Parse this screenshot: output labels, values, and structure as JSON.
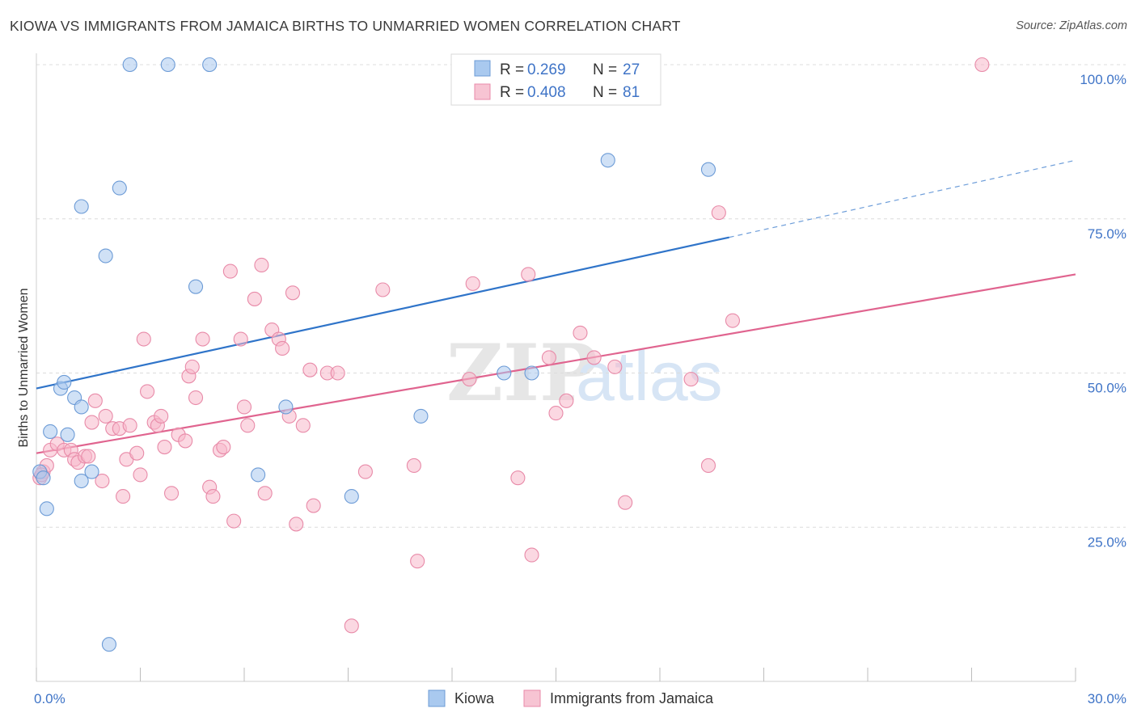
{
  "title": "KIOWA VS IMMIGRANTS FROM JAMAICA BIRTHS TO UNMARRIED WOMEN CORRELATION CHART",
  "source": "Source: ZipAtlas.com",
  "watermark": {
    "zip": "ZIP",
    "atlas": "atlas"
  },
  "chart_data": {
    "type": "scatter",
    "xlabel": "",
    "ylabel": "Births to Unmarried Women",
    "xlim": [
      0,
      30
    ],
    "ylim": [
      0,
      100
    ],
    "x_tick_labels": [
      {
        "value": 0,
        "label": "0.0%"
      },
      {
        "value": 30,
        "label": "30.0%"
      }
    ],
    "y_tick_labels": [
      {
        "value": 25,
        "label": "25.0%"
      },
      {
        "value": 50,
        "label": "50.0%"
      },
      {
        "value": 75,
        "label": "75.0%"
      },
      {
        "value": 100,
        "label": "100.0%"
      }
    ],
    "legend": {
      "r_label": "R =",
      "n_label": "N =",
      "entries": [
        {
          "name": "Kiowa",
          "r": "0.269",
          "n": "27"
        },
        {
          "name": "Immigrants from Jamaica",
          "r": "0.408",
          "n": "81"
        }
      ]
    },
    "series": [
      {
        "name": "Kiowa",
        "color": "#a9c9ef",
        "stroke": "#6c9bd6",
        "line_color": "#2f74c9",
        "trend": {
          "x0": 0,
          "y0": 47.5,
          "x1": 20,
          "y1": 72,
          "dash_to_x": 30,
          "dash_to_y": 84.5
        },
        "points": [
          {
            "x": 0.1,
            "y": 34
          },
          {
            "x": 0.2,
            "y": 33
          },
          {
            "x": 0.3,
            "y": 28
          },
          {
            "x": 0.4,
            "y": 40.5
          },
          {
            "x": 0.7,
            "y": 47.5
          },
          {
            "x": 0.8,
            "y": 48.5
          },
          {
            "x": 0.9,
            "y": 40
          },
          {
            "x": 1.1,
            "y": 46
          },
          {
            "x": 1.3,
            "y": 44.5
          },
          {
            "x": 1.3,
            "y": 32.5
          },
          {
            "x": 1.6,
            "y": 34
          },
          {
            "x": 1.3,
            "y": 77
          },
          {
            "x": 2.0,
            "y": 69
          },
          {
            "x": 2.1,
            "y": 6
          },
          {
            "x": 2.4,
            "y": 80
          },
          {
            "x": 2.7,
            "y": 100
          },
          {
            "x": 3.8,
            "y": 100
          },
          {
            "x": 5.0,
            "y": 100
          },
          {
            "x": 4.6,
            "y": 64
          },
          {
            "x": 6.4,
            "y": 33.5
          },
          {
            "x": 7.2,
            "y": 44.5
          },
          {
            "x": 9.1,
            "y": 30
          },
          {
            "x": 11.1,
            "y": 43
          },
          {
            "x": 13.5,
            "y": 50
          },
          {
            "x": 14.3,
            "y": 50
          },
          {
            "x": 16.5,
            "y": 84.5
          },
          {
            "x": 19.4,
            "y": 83
          }
        ]
      },
      {
        "name": "Immigrants from Jamaica",
        "color": "#f7b8cb",
        "stroke": "#e88aa8",
        "line_color": "#e0648f",
        "trend": {
          "x0": 0,
          "y0": 37,
          "x1": 30,
          "y1": 66
        },
        "points": [
          {
            "x": 0.1,
            "y": 33
          },
          {
            "x": 0.2,
            "y": 34
          },
          {
            "x": 0.3,
            "y": 35
          },
          {
            "x": 0.4,
            "y": 37.5
          },
          {
            "x": 0.6,
            "y": 38.5
          },
          {
            "x": 0.8,
            "y": 37.5
          },
          {
            "x": 1.0,
            "y": 37.5
          },
          {
            "x": 1.1,
            "y": 36
          },
          {
            "x": 1.2,
            "y": 35.5
          },
          {
            "x": 1.4,
            "y": 36.5
          },
          {
            "x": 1.5,
            "y": 36.5
          },
          {
            "x": 1.6,
            "y": 42
          },
          {
            "x": 1.7,
            "y": 45.5
          },
          {
            "x": 1.9,
            "y": 32.5
          },
          {
            "x": 2.0,
            "y": 43
          },
          {
            "x": 2.2,
            "y": 41
          },
          {
            "x": 2.4,
            "y": 41
          },
          {
            "x": 2.5,
            "y": 30
          },
          {
            "x": 2.6,
            "y": 36
          },
          {
            "x": 2.7,
            "y": 41.5
          },
          {
            "x": 2.9,
            "y": 37
          },
          {
            "x": 3.0,
            "y": 33.5
          },
          {
            "x": 3.1,
            "y": 55.5
          },
          {
            "x": 3.2,
            "y": 47
          },
          {
            "x": 3.4,
            "y": 42
          },
          {
            "x": 3.5,
            "y": 41.5
          },
          {
            "x": 3.6,
            "y": 43
          },
          {
            "x": 3.7,
            "y": 38
          },
          {
            "x": 3.9,
            "y": 30.5
          },
          {
            "x": 4.1,
            "y": 40
          },
          {
            "x": 4.3,
            "y": 39
          },
          {
            "x": 4.4,
            "y": 49.5
          },
          {
            "x": 4.5,
            "y": 51
          },
          {
            "x": 4.6,
            "y": 46
          },
          {
            "x": 4.8,
            "y": 55.5
          },
          {
            "x": 5.0,
            "y": 31.5
          },
          {
            "x": 5.1,
            "y": 30
          },
          {
            "x": 5.3,
            "y": 37.5
          },
          {
            "x": 5.4,
            "y": 38
          },
          {
            "x": 5.6,
            "y": 66.5
          },
          {
            "x": 5.7,
            "y": 26
          },
          {
            "x": 5.9,
            "y": 55.5
          },
          {
            "x": 6.0,
            "y": 44.5
          },
          {
            "x": 6.1,
            "y": 41.5
          },
          {
            "x": 6.3,
            "y": 62
          },
          {
            "x": 6.5,
            "y": 67.5
          },
          {
            "x": 6.6,
            "y": 30.5
          },
          {
            "x": 6.8,
            "y": 57
          },
          {
            "x": 7.0,
            "y": 55.5
          },
          {
            "x": 7.1,
            "y": 54
          },
          {
            "x": 7.3,
            "y": 43
          },
          {
            "x": 7.4,
            "y": 63
          },
          {
            "x": 7.5,
            "y": 25.5
          },
          {
            "x": 7.7,
            "y": 41.5
          },
          {
            "x": 7.9,
            "y": 50.5
          },
          {
            "x": 8.0,
            "y": 28.5
          },
          {
            "x": 8.4,
            "y": 50
          },
          {
            "x": 8.7,
            "y": 50
          },
          {
            "x": 9.1,
            "y": 9
          },
          {
            "x": 9.5,
            "y": 34
          },
          {
            "x": 10.0,
            "y": 63.5
          },
          {
            "x": 10.9,
            "y": 35
          },
          {
            "x": 11.0,
            "y": 19.5
          },
          {
            "x": 12.5,
            "y": 49
          },
          {
            "x": 12.6,
            "y": 64.5
          },
          {
            "x": 13.9,
            "y": 33
          },
          {
            "x": 14.2,
            "y": 66
          },
          {
            "x": 14.3,
            "y": 20.5
          },
          {
            "x": 14.8,
            "y": 52.5
          },
          {
            "x": 15.0,
            "y": 43.5
          },
          {
            "x": 15.3,
            "y": 45.5
          },
          {
            "x": 15.7,
            "y": 56.5
          },
          {
            "x": 16.1,
            "y": 52.5
          },
          {
            "x": 16.7,
            "y": 51
          },
          {
            "x": 17.0,
            "y": 29
          },
          {
            "x": 18.9,
            "y": 49
          },
          {
            "x": 19.4,
            "y": 35
          },
          {
            "x": 19.7,
            "y": 76
          },
          {
            "x": 20.1,
            "y": 58.5
          },
          {
            "x": 27.3,
            "y": 100
          },
          {
            "x": 0.15,
            "y": 33.5
          }
        ]
      }
    ]
  }
}
